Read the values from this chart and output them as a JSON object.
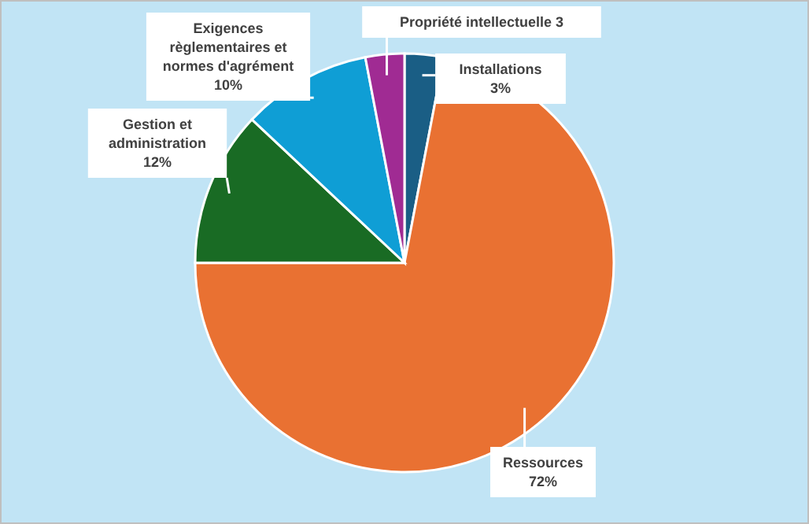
{
  "chart_data": {
    "type": "pie",
    "categories": [
      "Installations",
      "Ressources",
      "Gestion et administration",
      "Exigences règlementaires et normes d'agrément",
      "Propriété intellectuelle"
    ],
    "values": [
      3,
      72,
      12,
      10,
      3
    ],
    "value_labels": [
      "3%",
      "72%",
      "12%",
      "10%",
      "3"
    ],
    "colors": [
      "#1a5e85",
      "#e97132",
      "#196b24",
      "#0f9ed5",
      "#a02b93"
    ]
  }
}
